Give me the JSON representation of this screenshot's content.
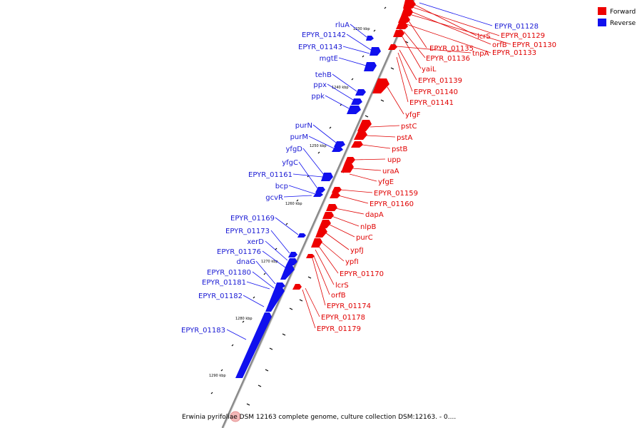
{
  "legend": [
    {
      "label": "Forward",
      "color": "#ee0000"
    },
    {
      "label": "Reverse",
      "color": "#1010ee"
    }
  ],
  "caption": "Erwinia pyrifoliae DSM 12163 complete genome, culture collection DSM:12163. - 0....",
  "colors": {
    "forward": "#ee0000",
    "reverse": "#1010ee",
    "backbone": "#888888"
  },
  "kbp_marks": [
    "1230 kbp",
    "1240 kbp",
    "1250 kbp",
    "1260 kbp",
    "1270 kbp",
    "1280 kbp",
    "1290 kbp"
  ],
  "forward_genes": [
    "EPYR_01128",
    "lcrS",
    "EPYR_01129",
    "orfB",
    "EPYR_01130",
    "EPYR_01135",
    "tnpA",
    "EPYR_01133",
    "EPYR_01136",
    "yaiL",
    "EPYR_01139",
    "EPYR_01140",
    "EPYR_01141",
    "yfgF",
    "pstC",
    "pstA",
    "pstB",
    "upp",
    "uraA",
    "yfgE",
    "EPYR_01159",
    "EPYR_01160",
    "dapA",
    "nlpB",
    "purC",
    "ypfJ",
    "ypfI",
    "EPYR_01170",
    "lcrS",
    "orfB",
    "EPYR_01174",
    "EPYR_01178",
    "EPYR_01179"
  ],
  "reverse_genes": [
    "rluA",
    "EPYR_01142",
    "EPYR_01143",
    "mgtE",
    "tehB",
    "ppx",
    "ppk",
    "purN",
    "purM",
    "yfgD",
    "yfgC",
    "EPYR_01161",
    "bcp",
    "gcvR",
    "EPYR_01169",
    "EPYR_01173",
    "xerD",
    "EPYR_01176",
    "dnaG",
    "EPYR_01180",
    "EPYR_01181",
    "EPYR_01182",
    "EPYR_01183"
  ]
}
